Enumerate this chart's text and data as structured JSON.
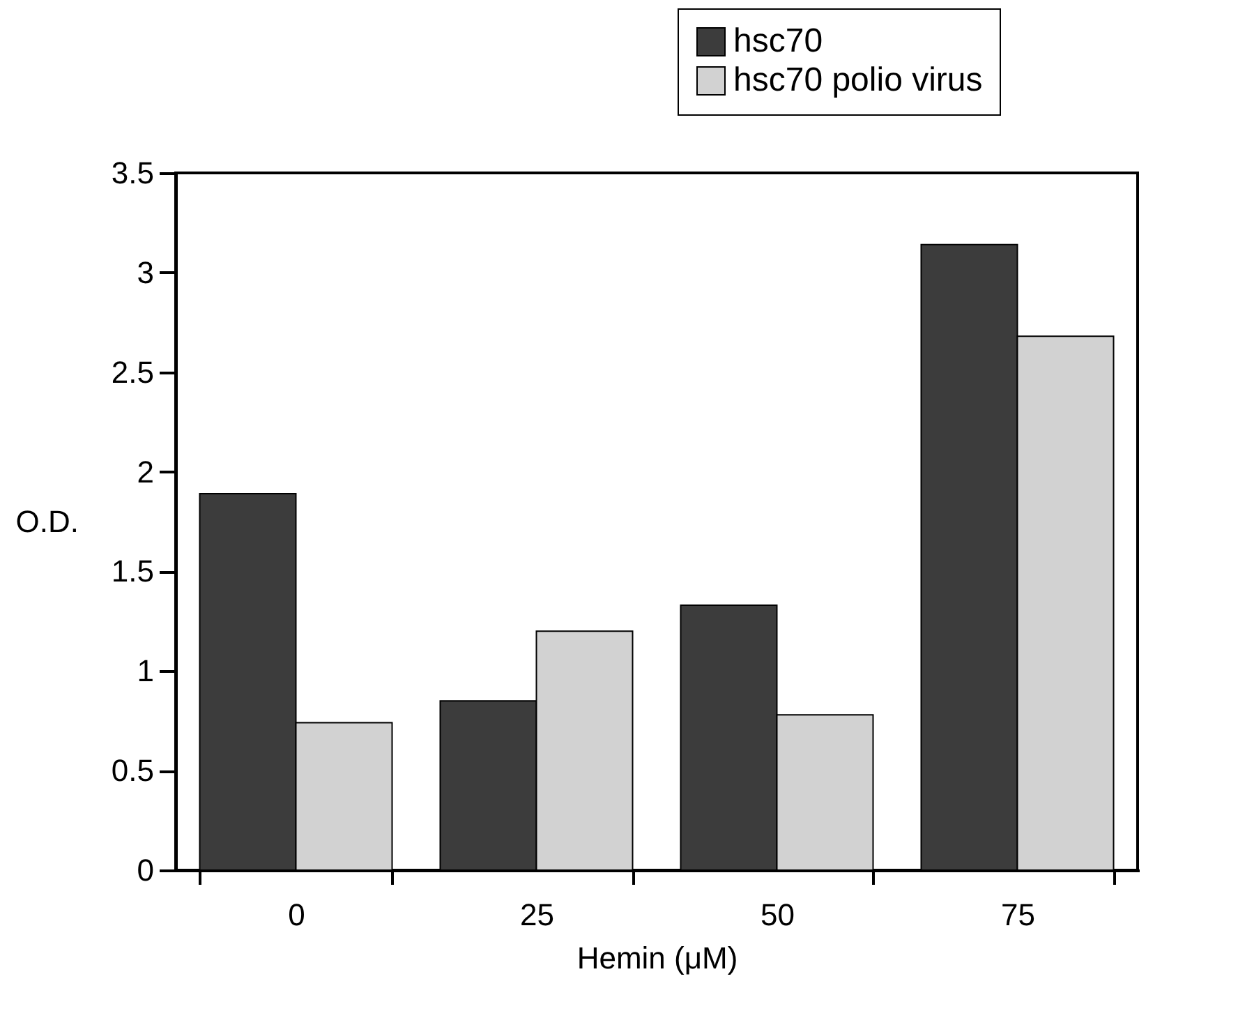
{
  "chart_data": {
    "type": "bar",
    "xlabel": "Hemin (μM)",
    "ylabel": "O.D.",
    "categories": [
      "0",
      "25",
      "50",
      "75"
    ],
    "series": [
      {
        "name": "hsc70",
        "color": "#3c3c3c",
        "values": [
          1.89,
          0.85,
          1.33,
          3.14
        ]
      },
      {
        "name": "hsc70 polio virus",
        "color": "#d2d2d2",
        "values": [
          0.74,
          1.2,
          0.78,
          2.68
        ]
      }
    ],
    "ylim": [
      0,
      3.5
    ],
    "yticks": [
      0,
      0.5,
      1,
      1.5,
      2,
      2.5,
      3,
      3.5
    ],
    "grid": false,
    "legend": "top right"
  }
}
